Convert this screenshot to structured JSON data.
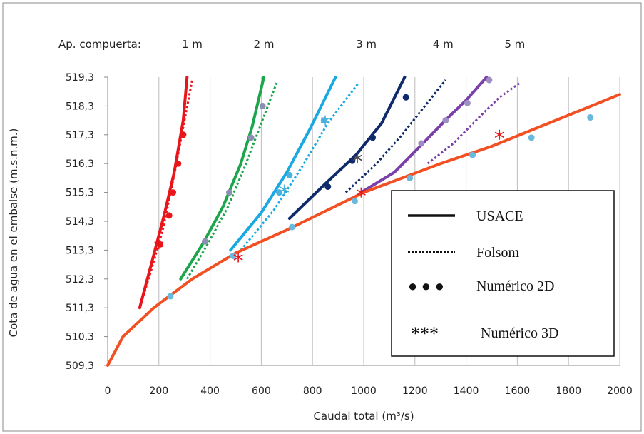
{
  "chart_data": {
    "type": "line",
    "xlabel": "Caudal total (m³/s)",
    "ylabel": "Cota de agua en el embalse (m.s.n.m.)",
    "xlim": [
      0,
      2000
    ],
    "ylim": [
      509.3,
      519.3
    ],
    "x_ticks": [
      0,
      200,
      400,
      600,
      800,
      1000,
      1200,
      1400,
      1600,
      1800,
      2000
    ],
    "y_ticks": [
      "509,3",
      "510,3",
      "511,3",
      "512,3",
      "513,3",
      "514,3",
      "515,3",
      "516,3",
      "517,3",
      "518,3",
      "519,3"
    ],
    "y_tick_values": [
      509.3,
      510.3,
      511.3,
      512.3,
      513.3,
      514.3,
      515.3,
      516.3,
      517.3,
      518.3,
      519.3
    ],
    "grid": "vertical",
    "opening_header": "Ap. compuerta:",
    "openings": [
      {
        "label": "1 m",
        "x": 330
      },
      {
        "label": "2 m",
        "x": 610
      },
      {
        "label": "3 m",
        "x": 1010
      },
      {
        "label": "4 m",
        "x": 1310
      },
      {
        "label": "5 m",
        "x": 1590
      }
    ],
    "legend": {
      "position": "bottom-right",
      "entries": [
        {
          "symbol": "solid",
          "label": "USACE"
        },
        {
          "symbol": "dotted",
          "label": "Folsom"
        },
        {
          "symbol": "● ● ●",
          "label": "Numérico 2D"
        },
        {
          "symbol": "***",
          "label": "Numérico 3D"
        }
      ]
    },
    "free_flow": {
      "color": "#f25022",
      "usace": [
        [
          0,
          509.3
        ],
        [
          60,
          510.3
        ],
        [
          180,
          511.3
        ],
        [
          330,
          512.3
        ],
        [
          500,
          513.2
        ],
        [
          700,
          514.0
        ],
        [
          1000,
          515.3
        ],
        [
          1300,
          516.3
        ],
        [
          1500,
          516.9
        ],
        [
          1750,
          517.8
        ],
        [
          2000,
          518.7
        ]
      ],
      "numerico_2d": [
        [
          245,
          511.7
        ],
        [
          490,
          513.1
        ],
        [
          720,
          514.1
        ],
        [
          965,
          515.0
        ],
        [
          1180,
          515.8
        ],
        [
          1425,
          516.6
        ],
        [
          1655,
          517.2
        ],
        [
          1885,
          517.9
        ]
      ],
      "numerico_3d": [
        [
          510,
          513.05
        ],
        [
          990,
          515.3
        ],
        [
          1530,
          517.3
        ]
      ]
    },
    "series": [
      {
        "opening": "1 m",
        "color": "#e8161b",
        "usace": [
          [
            125,
            511.3
          ],
          [
            170,
            512.8
          ],
          [
            220,
            514.5
          ],
          [
            260,
            516.0
          ],
          [
            295,
            517.8
          ],
          [
            310,
            519.3
          ]
        ],
        "folsom": [
          [
            125,
            511.3
          ],
          [
            170,
            512.6
          ],
          [
            215,
            514.0
          ],
          [
            260,
            515.9
          ],
          [
            300,
            517.8
          ],
          [
            330,
            519.2
          ]
        ],
        "numerico_2d": [
          [
            205,
            513.5
          ],
          [
            240,
            514.5
          ],
          [
            255,
            515.3
          ],
          [
            275,
            516.3
          ],
          [
            295,
            517.3
          ]
        ],
        "numerico_3d": [
          [
            200,
            513.5
          ]
        ]
      },
      {
        "opening": "2 m",
        "color": "#1ca64b",
        "usace": [
          [
            285,
            512.3
          ],
          [
            370,
            513.5
          ],
          [
            450,
            514.8
          ],
          [
            520,
            516.3
          ],
          [
            565,
            517.6
          ],
          [
            610,
            519.3
          ]
        ],
        "folsom": [
          [
            310,
            512.3
          ],
          [
            390,
            513.5
          ],
          [
            470,
            514.8
          ],
          [
            540,
            516.3
          ],
          [
            600,
            517.7
          ],
          [
            660,
            519.1
          ]
        ],
        "numerico_2d": [
          [
            380,
            513.6
          ],
          [
            475,
            515.3
          ],
          [
            560,
            517.2
          ],
          [
            605,
            518.3
          ]
        ],
        "numerico_3d": []
      },
      {
        "opening": "3 m",
        "color": "#18a8e2",
        "usace": [
          [
            480,
            513.3
          ],
          [
            600,
            514.6
          ],
          [
            700,
            516.0
          ],
          [
            790,
            517.5
          ],
          [
            890,
            519.3
          ]
        ],
        "folsom": [
          [
            520,
            513.3
          ],
          [
            650,
            514.7
          ],
          [
            760,
            516.2
          ],
          [
            860,
            517.7
          ],
          [
            980,
            519.1
          ]
        ],
        "numerico_2d": [
          [
            670,
            515.3
          ],
          [
            710,
            515.9
          ],
          [
            845,
            517.8
          ]
        ],
        "numerico_3d": [
          [
            690,
            515.4
          ],
          [
            850,
            517.8
          ]
        ]
      },
      {
        "opening": "4 m",
        "color": "#0f2a6b",
        "usace": [
          [
            710,
            514.4
          ],
          [
            850,
            515.6
          ],
          [
            970,
            516.6
          ],
          [
            1070,
            517.7
          ],
          [
            1160,
            519.3
          ]
        ],
        "folsom": [
          [
            930,
            515.3
          ],
          [
            1050,
            516.3
          ],
          [
            1150,
            517.3
          ],
          [
            1230,
            518.2
          ],
          [
            1320,
            519.2
          ]
        ],
        "numerico_2d": [
          [
            860,
            515.5
          ],
          [
            955,
            516.4
          ],
          [
            1035,
            517.2
          ],
          [
            1165,
            518.6
          ]
        ],
        "numerico_3d": [
          [
            975,
            516.5
          ]
        ]
      },
      {
        "opening": "5 m",
        "color": "#7a3fa8",
        "usace": [
          [
            990,
            515.3
          ],
          [
            1120,
            516.0
          ],
          [
            1220,
            516.9
          ],
          [
            1330,
            517.9
          ],
          [
            1400,
            518.5
          ],
          [
            1480,
            519.3
          ]
        ],
        "folsom": [
          [
            1250,
            516.3
          ],
          [
            1350,
            517.0
          ],
          [
            1450,
            517.9
          ],
          [
            1530,
            518.6
          ],
          [
            1610,
            519.1
          ]
        ],
        "numerico_2d": [
          [
            1225,
            517.0
          ],
          [
            1320,
            517.8
          ],
          [
            1405,
            518.4
          ],
          [
            1490,
            519.2
          ]
        ],
        "numerico_3d": []
      }
    ]
  }
}
